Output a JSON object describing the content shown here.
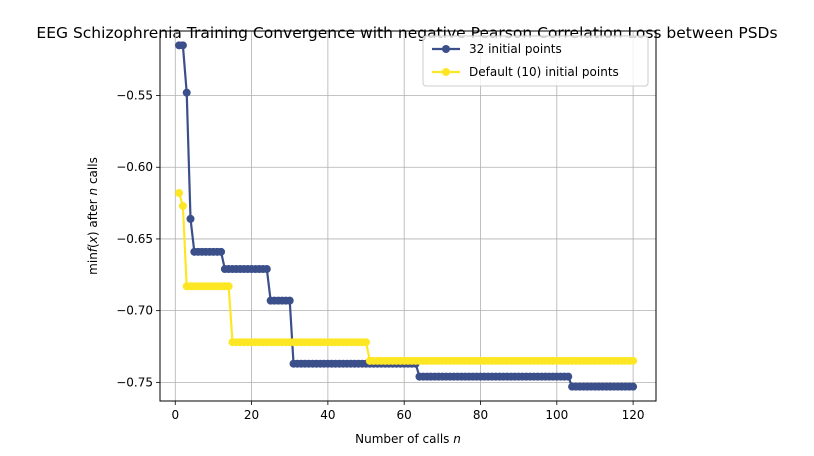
{
  "chart_data": {
    "type": "line",
    "title": "EEG Schizophrenia Training Convergence with negative Pearson Correlation Loss between PSDs",
    "xlabel": "Number of calls n",
    "ylabel": "min f(x) after n calls",
    "xlim": [
      -4,
      126
    ],
    "ylim": [
      -0.763,
      -0.505
    ],
    "xticks": [
      0,
      20,
      40,
      60,
      80,
      100,
      120
    ],
    "yticks": [
      -0.55,
      -0.6,
      -0.65,
      -0.7,
      -0.75
    ],
    "grid": true,
    "legend_position": "top-right",
    "series": [
      {
        "name": "32 initial points",
        "color": "#3b4f8a",
        "steps": [
          [
            1,
            -0.515
          ],
          [
            3,
            -0.548
          ],
          [
            4,
            -0.636
          ],
          [
            5,
            -0.659
          ],
          [
            13,
            -0.671
          ],
          [
            25,
            -0.693
          ],
          [
            31,
            -0.737
          ],
          [
            64,
            -0.746
          ],
          [
            104,
            -0.753
          ]
        ],
        "x_end": 120
      },
      {
        "name": "Default (10) initial points",
        "color": "#fde725",
        "steps": [
          [
            1,
            -0.618
          ],
          [
            2,
            -0.627
          ],
          [
            3,
            -0.683
          ],
          [
            15,
            -0.722
          ],
          [
            51,
            -0.735
          ]
        ],
        "x_end": 120
      }
    ]
  }
}
